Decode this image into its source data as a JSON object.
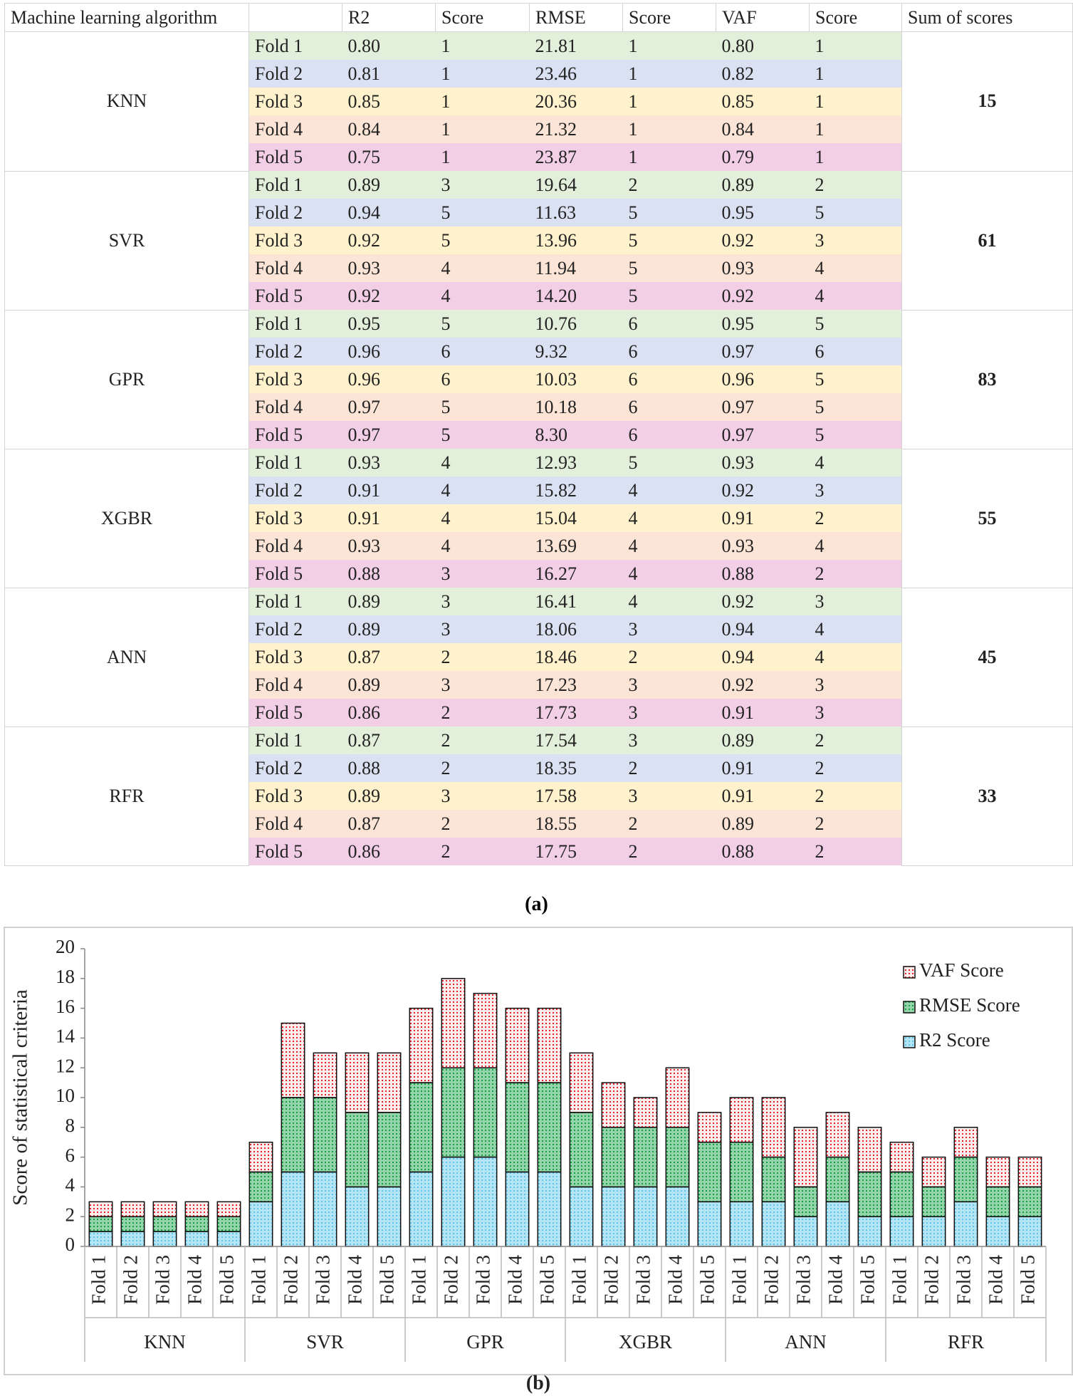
{
  "table": {
    "header": [
      "Machine learning algorithm",
      null,
      "R2",
      "Score",
      "RMSE",
      "Score",
      "VAF",
      "Score",
      "Sum of scores"
    ],
    "fold_colors": [
      "#e2efda",
      "#d9e1f2",
      "#fff2cc",
      "#fce4d6",
      "#f2cfe6"
    ],
    "groups": [
      {
        "name": "KNN",
        "sum": 15,
        "rows": [
          [
            "Fold 1",
            "0.80",
            "1",
            "21.81",
            "1",
            "0.80",
            "1"
          ],
          [
            "Fold 2",
            "0.81",
            "1",
            "23.46",
            "1",
            "0.82",
            "1"
          ],
          [
            "Fold 3",
            "0.85",
            "1",
            "20.36",
            "1",
            "0.85",
            "1"
          ],
          [
            "Fold 4",
            "0.84",
            "1",
            "21.32",
            "1",
            "0.84",
            "1"
          ],
          [
            "Fold 5",
            "0.75",
            "1",
            "23.87",
            "1",
            "0.79",
            "1"
          ]
        ]
      },
      {
        "name": "SVR",
        "sum": 61,
        "rows": [
          [
            "Fold 1",
            "0.89",
            "3",
            "19.64",
            "2",
            "0.89",
            "2"
          ],
          [
            "Fold 2",
            "0.94",
            "5",
            "11.63",
            "5",
            "0.95",
            "5"
          ],
          [
            "Fold 3",
            "0.92",
            "5",
            "13.96",
            "5",
            "0.92",
            "3"
          ],
          [
            "Fold 4",
            "0.93",
            "4",
            "11.94",
            "5",
            "0.93",
            "4"
          ],
          [
            "Fold 5",
            "0.92",
            "4",
            "14.20",
            "5",
            "0.92",
            "4"
          ]
        ]
      },
      {
        "name": "GPR",
        "sum": 83,
        "rows": [
          [
            "Fold 1",
            "0.95",
            "5",
            "10.76",
            "6",
            "0.95",
            "5"
          ],
          [
            "Fold 2",
            "0.96",
            "6",
            "9.32",
            "6",
            "0.97",
            "6"
          ],
          [
            "Fold 3",
            "0.96",
            "6",
            "10.03",
            "6",
            "0.96",
            "5"
          ],
          [
            "Fold 4",
            "0.97",
            "5",
            "10.18",
            "6",
            "0.97",
            "5"
          ],
          [
            "Fold 5",
            "0.97",
            "5",
            "8.30",
            "6",
            "0.97",
            "5"
          ]
        ]
      },
      {
        "name": "XGBR",
        "sum": 55,
        "rows": [
          [
            "Fold 1",
            "0.93",
            "4",
            "12.93",
            "5",
            "0.93",
            "4"
          ],
          [
            "Fold 2",
            "0.91",
            "4",
            "15.82",
            "4",
            "0.92",
            "3"
          ],
          [
            "Fold 3",
            "0.91",
            "4",
            "15.04",
            "4",
            "0.91",
            "2"
          ],
          [
            "Fold 4",
            "0.93",
            "4",
            "13.69",
            "4",
            "0.93",
            "4"
          ],
          [
            "Fold 5",
            "0.88",
            "3",
            "16.27",
            "4",
            "0.88",
            "2"
          ]
        ]
      },
      {
        "name": "ANN",
        "sum": 45,
        "rows": [
          [
            "Fold 1",
            "0.89",
            "3",
            "16.41",
            "4",
            "0.92",
            "3"
          ],
          [
            "Fold 2",
            "0.89",
            "3",
            "18.06",
            "3",
            "0.94",
            "4"
          ],
          [
            "Fold 3",
            "0.87",
            "2",
            "18.46",
            "2",
            "0.94",
            "4"
          ],
          [
            "Fold 4",
            "0.89",
            "3",
            "17.23",
            "3",
            "0.92",
            "3"
          ],
          [
            "Fold 5",
            "0.86",
            "2",
            "17.73",
            "3",
            "0.91",
            "3"
          ]
        ]
      },
      {
        "name": "RFR",
        "sum": 33,
        "rows": [
          [
            "Fold 1",
            "0.87",
            "2",
            "17.54",
            "3",
            "0.89",
            "2"
          ],
          [
            "Fold 2",
            "0.88",
            "2",
            "18.35",
            "2",
            "0.91",
            "2"
          ],
          [
            "Fold 3",
            "0.89",
            "3",
            "17.58",
            "3",
            "0.91",
            "2"
          ],
          [
            "Fold 4",
            "0.87",
            "2",
            "18.55",
            "2",
            "0.89",
            "2"
          ],
          [
            "Fold 5",
            "0.86",
            "2",
            "17.75",
            "2",
            "0.88",
            "2"
          ]
        ]
      }
    ]
  },
  "caption_a": "(a)",
  "chart_data": {
    "type": "stacked_bar",
    "ylabel": "Score of statistical criteria",
    "groups": [
      "KNN",
      "SVR",
      "GPR",
      "XGBR",
      "ANN",
      "RFR"
    ],
    "categories": [
      "Fold 1",
      "Fold 2",
      "Fold 3",
      "Fold 4",
      "Fold 5",
      "Fold 1",
      "Fold 2",
      "Fold 3",
      "Fold 4",
      "Fold 5",
      "Fold 1",
      "Fold 2",
      "Fold 3",
      "Fold 4",
      "Fold 5",
      "Fold 1",
      "Fold 2",
      "Fold 3",
      "Fold 4",
      "Fold 5",
      "Fold 1",
      "Fold 2",
      "Fold 3",
      "Fold 4",
      "Fold 5",
      "Fold 1",
      "Fold 2",
      "Fold 3",
      "Fold 4",
      "Fold 5"
    ],
    "series": [
      {
        "name": "R2 Score",
        "color": "#5cc6ea",
        "values": [
          1,
          1,
          1,
          1,
          1,
          3,
          5,
          5,
          4,
          4,
          5,
          6,
          6,
          5,
          5,
          4,
          4,
          4,
          4,
          3,
          3,
          3,
          2,
          3,
          2,
          2,
          2,
          3,
          2,
          2
        ]
      },
      {
        "name": "RMSE Score",
        "color": "#12a043",
        "values": [
          1,
          1,
          1,
          1,
          1,
          2,
          5,
          5,
          5,
          5,
          6,
          6,
          6,
          6,
          6,
          5,
          4,
          4,
          4,
          4,
          4,
          3,
          2,
          3,
          3,
          3,
          2,
          3,
          2,
          2
        ]
      },
      {
        "name": "VAF Score",
        "color": "#e8202a",
        "values": [
          1,
          1,
          1,
          1,
          1,
          2,
          5,
          3,
          4,
          4,
          5,
          6,
          5,
          5,
          5,
          4,
          3,
          2,
          4,
          2,
          3,
          4,
          4,
          3,
          3,
          2,
          2,
          2,
          2,
          2
        ]
      }
    ],
    "ylim": [
      0,
      20
    ],
    "yticks": [
      0,
      2,
      4,
      6,
      8,
      10,
      12,
      14,
      16,
      18,
      20
    ],
    "grid": false,
    "legend": "upper right"
  },
  "caption_b": "(b)"
}
